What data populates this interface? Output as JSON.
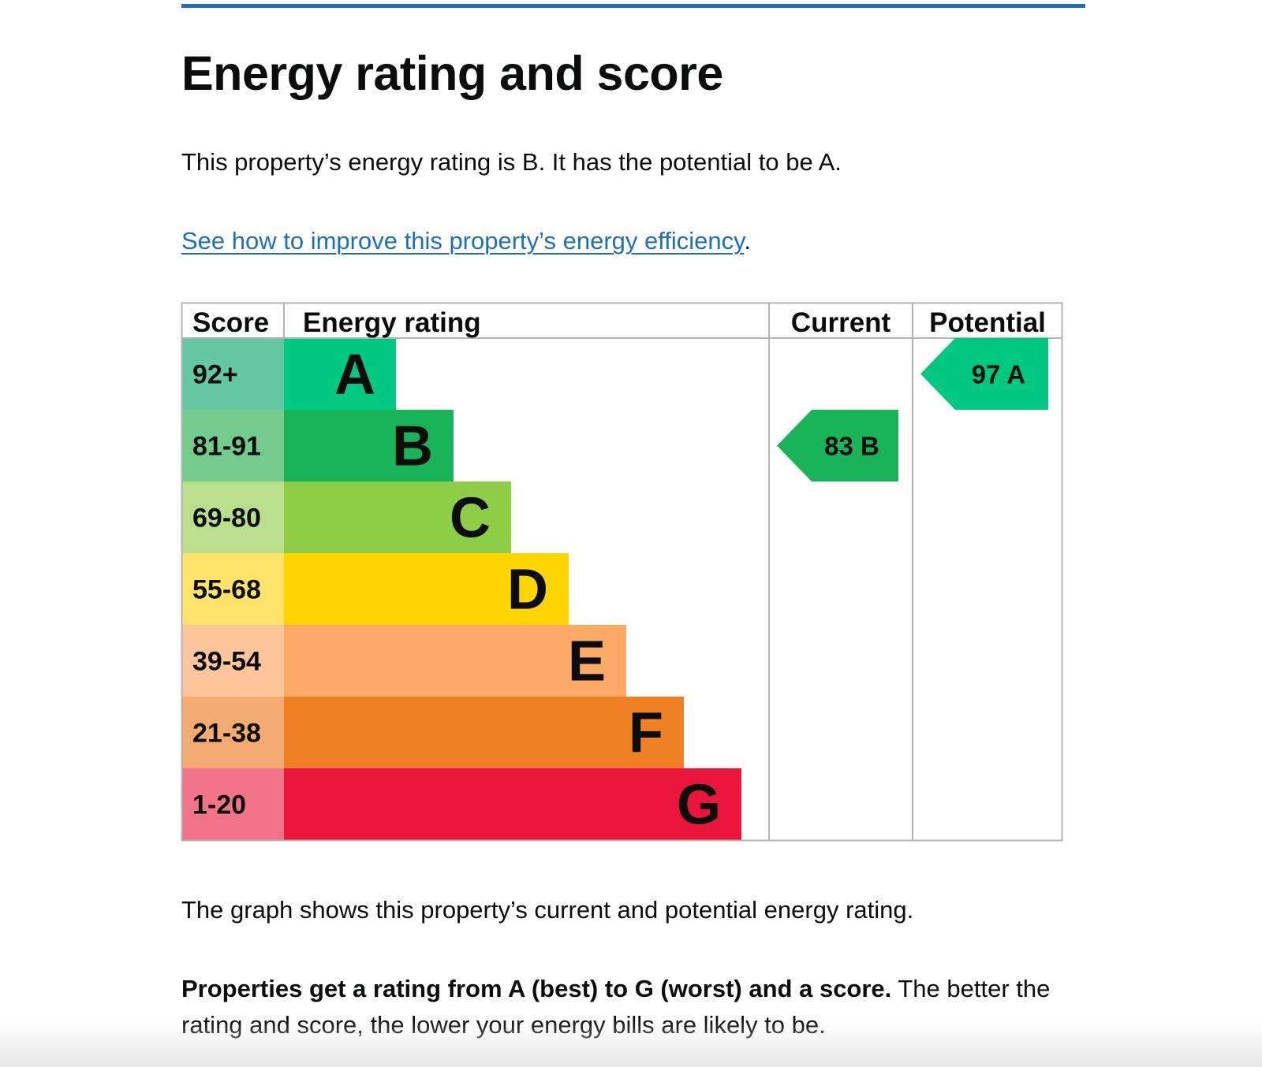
{
  "page": {
    "title": "Energy rating and score",
    "intro": "This property’s energy rating is B. It has the potential to be A.",
    "link_text": "See how to improve this property’s energy efficiency",
    "link_suffix": ".",
    "graph_caption": "The graph shows this property’s current and potential energy rating.",
    "explainer_bold": "Properties get a rating from A (best) to G (worst) and a score.",
    "explainer_rest": " The better the rating and score, the lower your energy bills are likely to be."
  },
  "colors": {
    "link": "#1d70b8",
    "top_rule": "#1d70b8",
    "text": "#0b0c0c",
    "grid": "#b1b4b6"
  },
  "chart_data": {
    "type": "table",
    "headers": {
      "score": "Score",
      "rating": "Energy rating",
      "current": "Current",
      "potential": "Potential"
    },
    "bands": [
      {
        "letter": "A",
        "range": "92+",
        "color": "#00c781",
        "score_color": "#64c8a4"
      },
      {
        "letter": "B",
        "range": "81-91",
        "color": "#19b459",
        "score_color": "#74cb8e"
      },
      {
        "letter": "C",
        "range": "69-80",
        "color": "#8dce46",
        "score_color": "#b9df8d"
      },
      {
        "letter": "D",
        "range": "55-68",
        "color": "#ffd500",
        "score_color": "#ffe36a"
      },
      {
        "letter": "E",
        "range": "39-54",
        "color": "#fcaa65",
        "score_color": "#fdc59a"
      },
      {
        "letter": "F",
        "range": "21-38",
        "color": "#ef8023",
        "score_color": "#f4ab71"
      },
      {
        "letter": "G",
        "range": "1-20",
        "color": "#e9153b",
        "score_color": "#f07388"
      }
    ],
    "current": {
      "score": 83,
      "letter": "B"
    },
    "potential": {
      "score": 97,
      "letter": "A"
    }
  }
}
